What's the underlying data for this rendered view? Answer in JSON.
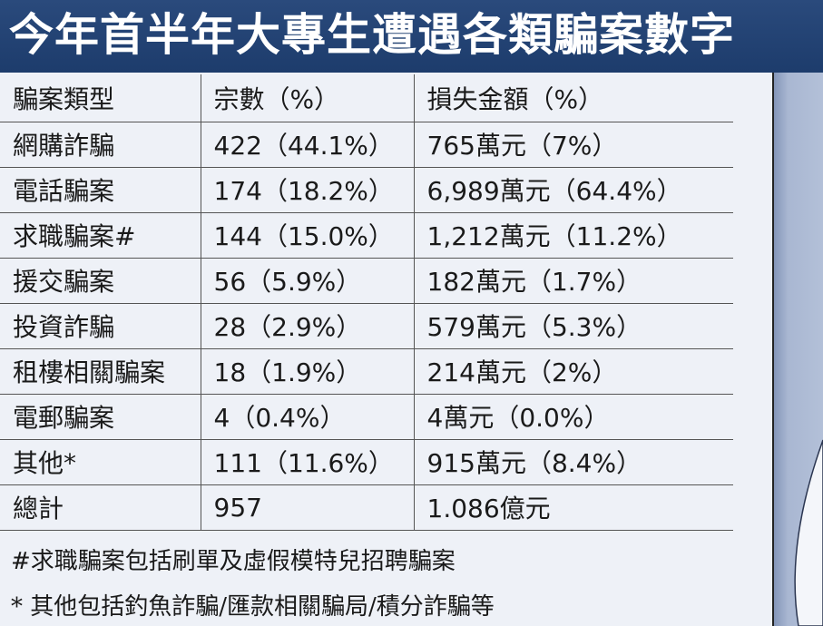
{
  "title": "今年首半年大專生遭遇各類騙案數字",
  "colors": {
    "title_bg": "#1f3f6e",
    "table_bg": "#eef1f7",
    "side_panel": "#a9b7d2"
  },
  "chart_data": {
    "type": "table",
    "title": "今年首半年大專生遭遇各類騙案數字",
    "columns": [
      "騙案類型",
      "宗數（%）",
      "損失金額（%）"
    ],
    "rows": [
      [
        "網購詐騙",
        "422（44.1%）",
        "765萬元（7%）"
      ],
      [
        "電話騙案",
        "174（18.2%）",
        "6,989萬元（64.4%）"
      ],
      [
        "求職騙案#",
        "144（15.0%）",
        "1,212萬元（11.2%）"
      ],
      [
        "援交騙案",
        "56（5.9%）",
        "182萬元（1.7%）"
      ],
      [
        "投資詐騙",
        "28（2.9%）",
        "579萬元（5.3%）"
      ],
      [
        "租樓相關騙案",
        "18（1.9%）",
        "214萬元（2%）"
      ],
      [
        "電郵騙案",
        "4（0.4%）",
        "4萬元（0.0%）"
      ],
      [
        "其他*",
        "111（11.6%）",
        "915萬元（8.4%）"
      ],
      [
        "總計",
        "957",
        "1.086億元"
      ]
    ]
  },
  "notes": [
    "#求職騙案包括刷單及虛假模特兒招聘騙案",
    "* 其他包括釣魚詐騙/匯款相關騙局/積分詐騙等"
  ]
}
